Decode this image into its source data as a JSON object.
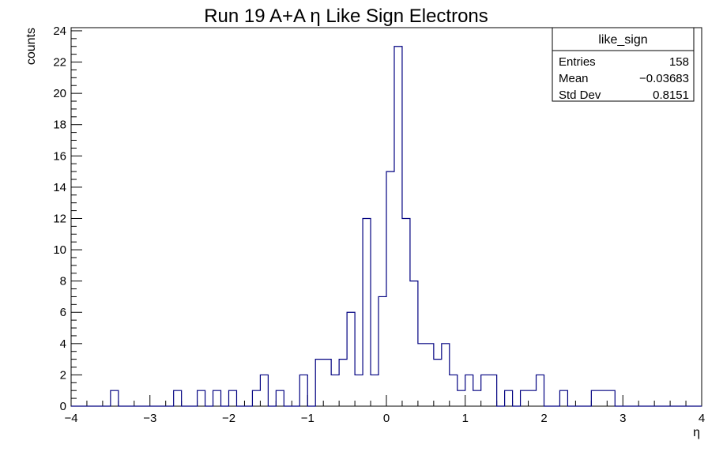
{
  "chart_data": {
    "type": "histogram",
    "title": "Run 19 A+A  η Like Sign Electrons",
    "xlabel": "η",
    "ylabel": "counts",
    "xlim": [
      -4,
      4
    ],
    "ylim": [
      0,
      24.2
    ],
    "bin_width": 0.1,
    "x_ticks": [
      -4,
      -3,
      -2,
      -1,
      0,
      1,
      2,
      3,
      4
    ],
    "x_tick_labels": [
      "−4",
      "−3",
      "−2",
      "−1",
      "0",
      "1",
      "2",
      "3",
      "4"
    ],
    "y_ticks": [
      0,
      2,
      4,
      6,
      8,
      10,
      12,
      14,
      16,
      18,
      20,
      22,
      24
    ],
    "line_color": "#000080",
    "bins_lower_edge": [
      -4.0,
      -3.9,
      -3.8,
      -3.7,
      -3.6,
      -3.5,
      -3.4,
      -3.3,
      -3.2,
      -3.1,
      -3.0,
      -2.9,
      -2.8,
      -2.7,
      -2.6,
      -2.5,
      -2.4,
      -2.3,
      -2.2,
      -2.1,
      -2.0,
      -1.9,
      -1.8,
      -1.7,
      -1.6,
      -1.5,
      -1.4,
      -1.3,
      -1.2,
      -1.1,
      -1.0,
      -0.9,
      -0.8,
      -0.7,
      -0.6,
      -0.5,
      -0.4,
      -0.3,
      -0.2,
      -0.1,
      0.0,
      0.1,
      0.2,
      0.3,
      0.4,
      0.5,
      0.6,
      0.7,
      0.8,
      0.9,
      1.0,
      1.1,
      1.2,
      1.3,
      1.4,
      1.5,
      1.6,
      1.7,
      1.8,
      1.9,
      2.0,
      2.1,
      2.2,
      2.3,
      2.4,
      2.5,
      2.6,
      2.7,
      2.8,
      2.9,
      3.0,
      3.1,
      3.2,
      3.3,
      3.4,
      3.5,
      3.6,
      3.7,
      3.8,
      3.9
    ],
    "counts": [
      0,
      0,
      0,
      0,
      0,
      1,
      0,
      0,
      0,
      0,
      0,
      0,
      0,
      1,
      0,
      0,
      1,
      0,
      1,
      0,
      1,
      0,
      0,
      1,
      2,
      0,
      1,
      0,
      0,
      2,
      0,
      3,
      3,
      2,
      3,
      6,
      2,
      12,
      2,
      7,
      15,
      23,
      12,
      8,
      4,
      4,
      3,
      4,
      2,
      1,
      2,
      1,
      2,
      2,
      0,
      1,
      0,
      1,
      1,
      2,
      0,
      0,
      1,
      0,
      0,
      0,
      1,
      1,
      1,
      0,
      0,
      0,
      0,
      0,
      0,
      0,
      0,
      0,
      0,
      0
    ],
    "stats_box": {
      "title": "like_sign",
      "rows": [
        {
          "label": "Entries",
          "value": "158"
        },
        {
          "label": "Mean",
          "value": "−0.03683"
        },
        {
          "label": "Std Dev",
          "value": "0.8151"
        }
      ]
    }
  }
}
